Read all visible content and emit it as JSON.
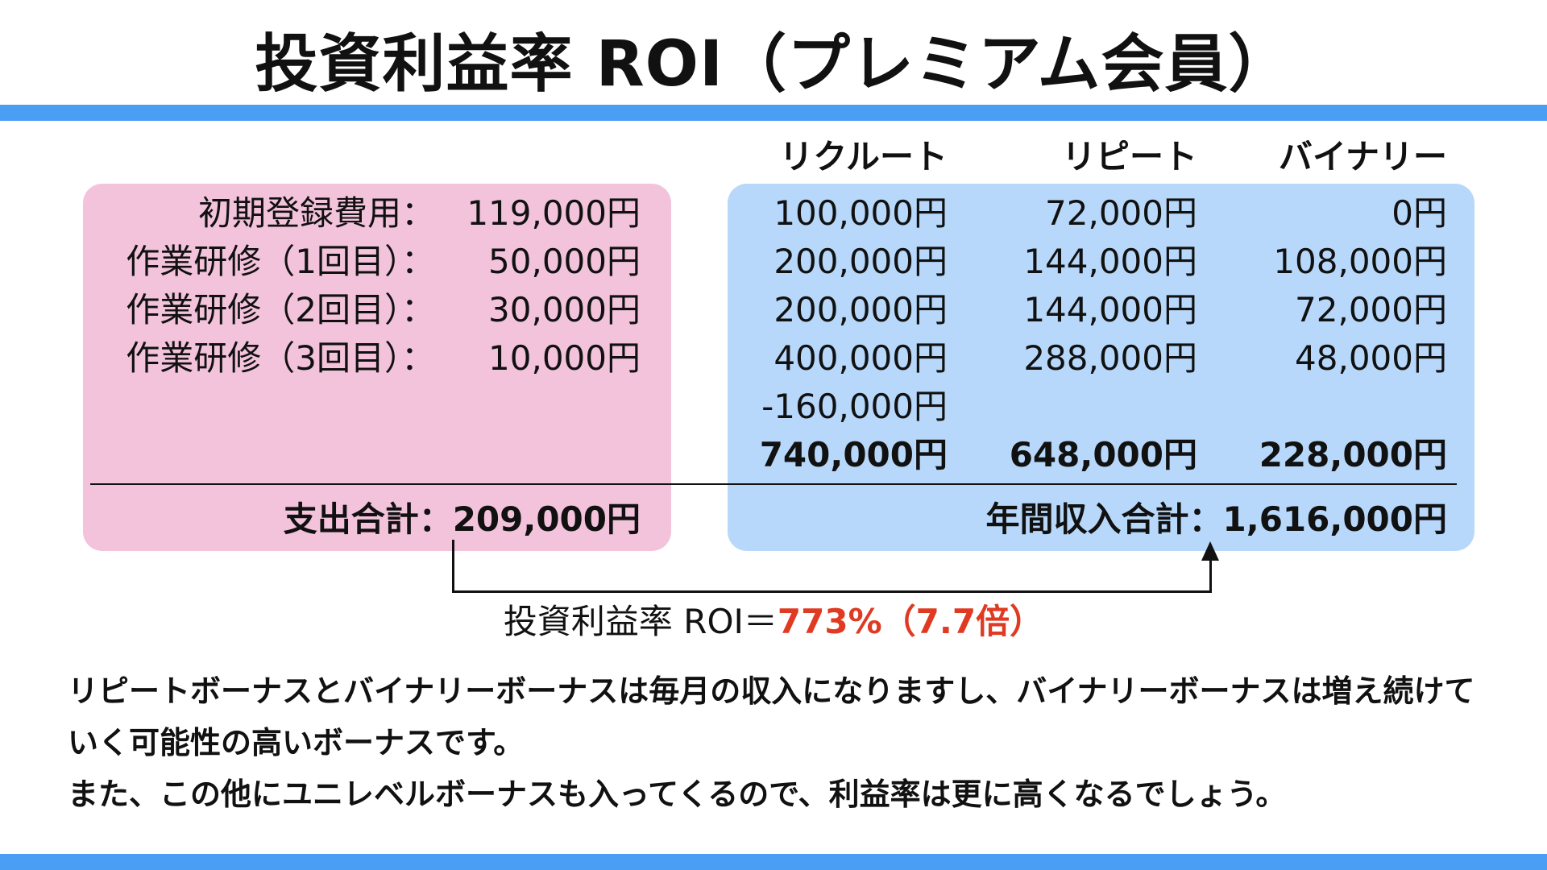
{
  "title": "投資利益率 ROI（プレミアム会員）",
  "colors": {
    "accent_bar": "#4a9ff5",
    "expense_panel": "#f3c3dc",
    "income_panel": "#b7d8fa",
    "roi_highlight": "#e03a22"
  },
  "expenses": {
    "rows": [
      {
        "label": "初期登録費用：",
        "value": "119,000円"
      },
      {
        "label": "作業研修（1回目）：",
        "value": "50,000円"
      },
      {
        "label": "作業研修（2回目）：",
        "value": "30,000円"
      },
      {
        "label": "作業研修（3回目）：",
        "value": "10,000円"
      }
    ],
    "total": "支出合計：209,000円"
  },
  "income": {
    "headers": [
      "リクルート",
      "リピート",
      "バイナリー"
    ],
    "rows": [
      [
        "100,000円",
        "72,000円",
        "0円"
      ],
      [
        "200,000円",
        "144,000円",
        "108,000円"
      ],
      [
        "200,000円",
        "144,000円",
        "72,000円"
      ],
      [
        "400,000円",
        "288,000円",
        "48,000円"
      ],
      [
        "-160,000円",
        "",
        ""
      ]
    ],
    "subtotals": [
      "740,000円",
      "648,000円",
      "228,000円"
    ],
    "total": "年間収入合計：1,616,000円"
  },
  "roi": {
    "label": "投資利益率 ROI＝",
    "percent": "773%（7.7倍）"
  },
  "notes": [
    "リピートボーナスとバイナリーボーナスは毎月の収入になりますし、バイナリーボーナスは増え続けていく可能性の高いボーナスです。",
    "また、この他にユニレベルボーナスも入ってくるので、利益率は更に高くなるでしょう。"
  ]
}
